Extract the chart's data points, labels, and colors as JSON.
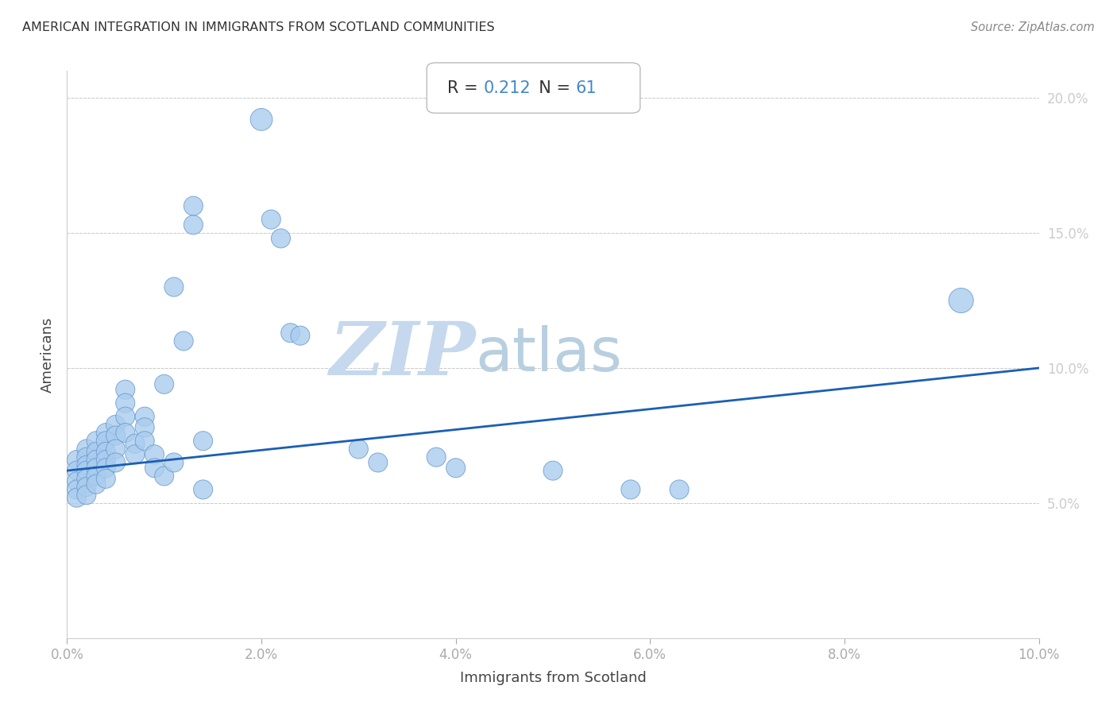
{
  "title": "AMERICAN INTEGRATION IN IMMIGRANTS FROM SCOTLAND COMMUNITIES",
  "source": "Source: ZipAtlas.com",
  "xlabel": "Immigrants from Scotland",
  "ylabel": "Americans",
  "R": 0.212,
  "N": 61,
  "xlim": [
    0.0,
    0.1
  ],
  "ylim": [
    0.0,
    0.21
  ],
  "xticks": [
    0.0,
    0.02,
    0.04,
    0.06,
    0.08,
    0.1
  ],
  "yticks": [
    0.05,
    0.1,
    0.15,
    0.2
  ],
  "scatter_color": "#aaccee",
  "scatter_edge_color": "#6699cc",
  "line_color": "#1a5fb4",
  "background_color": "#ffffff",
  "points": [
    [
      0.001,
      0.066
    ],
    [
      0.001,
      0.062
    ],
    [
      0.001,
      0.058
    ],
    [
      0.001,
      0.055
    ],
    [
      0.001,
      0.052
    ],
    [
      0.002,
      0.07
    ],
    [
      0.002,
      0.067
    ],
    [
      0.002,
      0.064
    ],
    [
      0.002,
      0.062
    ],
    [
      0.002,
      0.059
    ],
    [
      0.002,
      0.056
    ],
    [
      0.002,
      0.053
    ],
    [
      0.003,
      0.073
    ],
    [
      0.003,
      0.069
    ],
    [
      0.003,
      0.066
    ],
    [
      0.003,
      0.063
    ],
    [
      0.003,
      0.06
    ],
    [
      0.003,
      0.057
    ],
    [
      0.004,
      0.076
    ],
    [
      0.004,
      0.073
    ],
    [
      0.004,
      0.069
    ],
    [
      0.004,
      0.066
    ],
    [
      0.004,
      0.063
    ],
    [
      0.004,
      0.059
    ],
    [
      0.005,
      0.079
    ],
    [
      0.005,
      0.075
    ],
    [
      0.005,
      0.07
    ],
    [
      0.005,
      0.065
    ],
    [
      0.006,
      0.092
    ],
    [
      0.006,
      0.087
    ],
    [
      0.006,
      0.082
    ],
    [
      0.006,
      0.076
    ],
    [
      0.007,
      0.072
    ],
    [
      0.007,
      0.068
    ],
    [
      0.008,
      0.082
    ],
    [
      0.008,
      0.078
    ],
    [
      0.008,
      0.073
    ],
    [
      0.009,
      0.068
    ],
    [
      0.009,
      0.063
    ],
    [
      0.01,
      0.094
    ],
    [
      0.01,
      0.06
    ],
    [
      0.011,
      0.13
    ],
    [
      0.011,
      0.065
    ],
    [
      0.012,
      0.11
    ],
    [
      0.013,
      0.16
    ],
    [
      0.013,
      0.153
    ],
    [
      0.014,
      0.073
    ],
    [
      0.014,
      0.055
    ],
    [
      0.02,
      0.192
    ],
    [
      0.021,
      0.155
    ],
    [
      0.022,
      0.148
    ],
    [
      0.023,
      0.113
    ],
    [
      0.024,
      0.112
    ],
    [
      0.03,
      0.07
    ],
    [
      0.032,
      0.065
    ],
    [
      0.038,
      0.067
    ],
    [
      0.04,
      0.063
    ],
    [
      0.05,
      0.062
    ],
    [
      0.058,
      0.055
    ],
    [
      0.063,
      0.055
    ],
    [
      0.092,
      0.125
    ]
  ],
  "point_sizes_base": [
    15,
    15,
    15,
    15,
    15,
    15,
    15,
    15,
    15,
    15,
    15,
    15,
    15,
    15,
    15,
    15,
    15,
    15,
    15,
    15,
    15,
    15,
    15,
    15,
    15,
    15,
    15,
    15,
    15,
    15,
    15,
    15,
    15,
    15,
    15,
    15,
    15,
    15,
    15,
    15,
    15,
    15,
    15,
    15,
    15,
    15,
    15,
    15,
    20,
    15,
    15,
    15,
    15,
    15,
    15,
    15,
    15,
    15,
    15,
    15,
    25
  ],
  "line_x_start": 0.0,
  "line_x_end": 0.1,
  "line_y_start": 0.062,
  "line_y_end": 0.1,
  "watermark_zip": "ZIP",
  "watermark_atlas": "atlas",
  "zip_color": "#c5d8ee",
  "atlas_color": "#b8cfe0"
}
